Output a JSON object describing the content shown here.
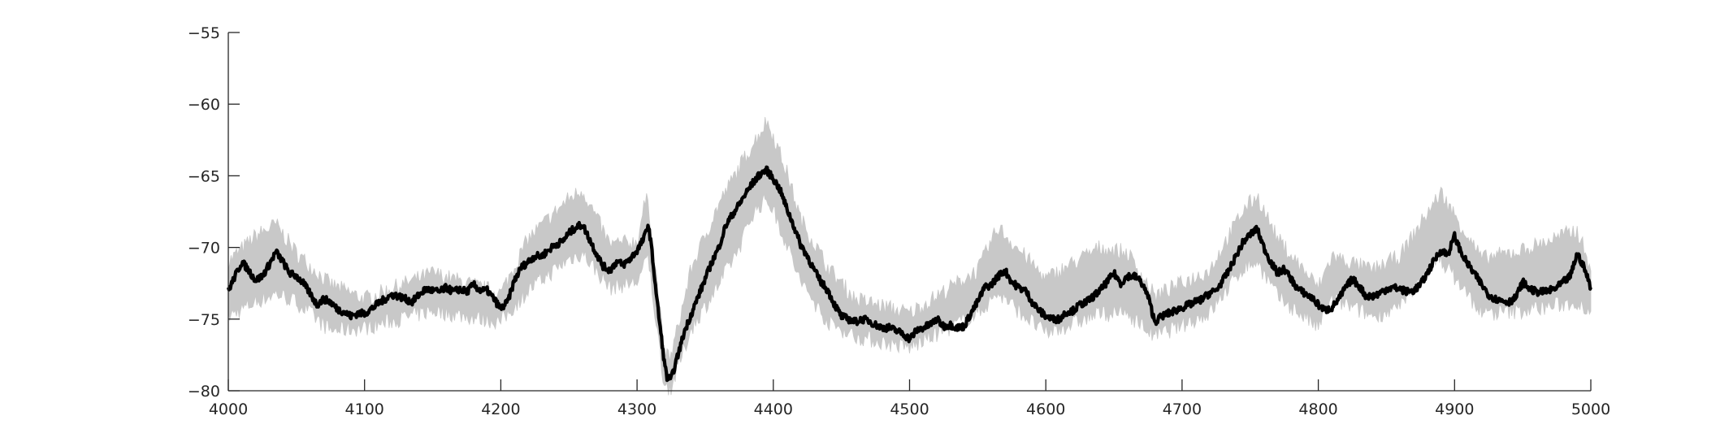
{
  "chart_data": {
    "type": "line",
    "title": "",
    "xlabel": "",
    "ylabel": "",
    "xlim": [
      4000,
      5000
    ],
    "ylim": [
      -80,
      -55
    ],
    "x_ticks": [
      4000,
      4100,
      4200,
      4300,
      4400,
      4500,
      4600,
      4700,
      4800,
      4900,
      5000
    ],
    "y_ticks": [
      -55,
      -60,
      -65,
      -70,
      -75,
      -80
    ],
    "grid": false,
    "legend": "none",
    "series": [
      {
        "role": "mean",
        "color": "#000000",
        "x": [
          4000,
          4005,
          4010,
          4015,
          4020,
          4025,
          4030,
          4035,
          4040,
          4045,
          4050,
          4055,
          4060,
          4065,
          4070,
          4075,
          4080,
          4085,
          4090,
          4095,
          4100,
          4105,
          4110,
          4115,
          4120,
          4125,
          4130,
          4135,
          4140,
          4145,
          4150,
          4155,
          4160,
          4165,
          4170,
          4175,
          4180,
          4185,
          4190,
          4195,
          4200,
          4205,
          4210,
          4215,
          4220,
          4225,
          4230,
          4235,
          4240,
          4245,
          4250,
          4255,
          4260,
          4265,
          4270,
          4275,
          4280,
          4285,
          4290,
          4295,
          4300,
          4305,
          4308,
          4310,
          4315,
          4320,
          4322,
          4325,
          4330,
          4335,
          4340,
          4345,
          4350,
          4355,
          4360,
          4365,
          4370,
          4375,
          4380,
          4385,
          4390,
          4395,
          4400,
          4405,
          4410,
          4415,
          4420,
          4425,
          4430,
          4435,
          4440,
          4445,
          4450,
          4455,
          4460,
          4465,
          4470,
          4475,
          4480,
          4485,
          4490,
          4495,
          4500,
          4505,
          4510,
          4515,
          4520,
          4525,
          4530,
          4535,
          4540,
          4545,
          4550,
          4555,
          4560,
          4565,
          4570,
          4575,
          4580,
          4585,
          4590,
          4595,
          4600,
          4605,
          4610,
          4615,
          4620,
          4625,
          4630,
          4635,
          4640,
          4645,
          4650,
          4655,
          4660,
          4665,
          4670,
          4675,
          4680,
          4685,
          4690,
          4695,
          4700,
          4705,
          4710,
          4715,
          4720,
          4725,
          4730,
          4735,
          4740,
          4745,
          4750,
          4755,
          4760,
          4765,
          4770,
          4775,
          4780,
          4785,
          4790,
          4795,
          4800,
          4805,
          4810,
          4815,
          4820,
          4825,
          4830,
          4835,
          4840,
          4845,
          4850,
          4855,
          4860,
          4865,
          4870,
          4875,
          4880,
          4885,
          4890,
          4895,
          4900,
          4905,
          4910,
          4915,
          4920,
          4925,
          4930,
          4935,
          4940,
          4945,
          4950,
          4955,
          4960,
          4965,
          4970,
          4975,
          4980,
          4985,
          4990,
          4995,
          5000
        ],
        "y": [
          -73.0,
          -72.0,
          -71.0,
          -71.6,
          -72.3,
          -72.0,
          -71.2,
          -70.3,
          -71.0,
          -71.8,
          -72.0,
          -72.5,
          -73.2,
          -74.0,
          -73.6,
          -73.8,
          -74.3,
          -74.5,
          -74.8,
          -74.6,
          -74.6,
          -74.3,
          -73.9,
          -73.6,
          -73.3,
          -73.4,
          -73.6,
          -73.8,
          -73.3,
          -72.9,
          -73.0,
          -73.1,
          -72.8,
          -73.1,
          -72.9,
          -73.1,
          -72.6,
          -73.0,
          -73.0,
          -73.6,
          -74.3,
          -73.8,
          -72.3,
          -71.4,
          -71.0,
          -70.6,
          -70.6,
          -70.2,
          -69.8,
          -69.6,
          -69.0,
          -68.6,
          -68.4,
          -69.4,
          -70.4,
          -71.3,
          -71.6,
          -71.0,
          -71.2,
          -70.8,
          -70.2,
          -69.4,
          -68.4,
          -69.5,
          -74.0,
          -78.0,
          -79.1,
          -79.2,
          -77.5,
          -75.8,
          -74.6,
          -73.4,
          -72.2,
          -71.0,
          -70.0,
          -68.5,
          -67.7,
          -67.0,
          -66.2,
          -65.5,
          -64.9,
          -64.6,
          -65.2,
          -66.0,
          -67.3,
          -68.5,
          -69.8,
          -70.6,
          -71.6,
          -72.4,
          -73.0,
          -74.0,
          -74.8,
          -75.0,
          -75.2,
          -75.0,
          -75.1,
          -75.4,
          -75.6,
          -75.6,
          -75.8,
          -76.0,
          -76.4,
          -75.8,
          -75.6,
          -75.4,
          -75.0,
          -75.5,
          -75.4,
          -75.6,
          -75.5,
          -74.6,
          -73.8,
          -72.8,
          -72.6,
          -72.0,
          -71.6,
          -72.4,
          -72.8,
          -73.0,
          -73.8,
          -74.4,
          -74.8,
          -75.0,
          -75.0,
          -74.5,
          -74.4,
          -74.0,
          -73.8,
          -73.4,
          -73.0,
          -72.4,
          -71.8,
          -72.5,
          -72.0,
          -72.0,
          -72.4,
          -73.4,
          -75.2,
          -74.8,
          -74.6,
          -74.4,
          -74.2,
          -74.0,
          -73.8,
          -73.6,
          -73.2,
          -73.0,
          -72.3,
          -71.5,
          -70.5,
          -69.6,
          -69.1,
          -68.7,
          -70.0,
          -71.0,
          -71.8,
          -71.5,
          -72.2,
          -72.9,
          -73.2,
          -73.5,
          -74.0,
          -74.4,
          -74.2,
          -73.6,
          -72.8,
          -72.2,
          -72.7,
          -73.4,
          -73.4,
          -73.2,
          -72.9,
          -72.8,
          -72.9,
          -73.1,
          -73.0,
          -72.6,
          -71.8,
          -70.9,
          -70.2,
          -70.5,
          -69.2,
          -70.4,
          -71.2,
          -71.9,
          -72.6,
          -73.3,
          -73.6,
          -73.7,
          -73.8,
          -73.5,
          -72.4,
          -72.9,
          -73.1,
          -73.1,
          -73.0,
          -72.8,
          -72.4,
          -72.0,
          -70.4,
          -71.4,
          -72.8
        ]
      }
    ],
    "band": {
      "color": "#c8c8c8",
      "description": "trial spread",
      "x": [
        4000,
        4020,
        4035,
        4050,
        4075,
        4100,
        4150,
        4200,
        4220,
        4250,
        4260,
        4280,
        4300,
        4305,
        4308,
        4315,
        4320,
        4325,
        4340,
        4360,
        4375,
        4385,
        4395,
        4400,
        4410,
        4420,
        4440,
        4460,
        4500,
        4550,
        4565,
        4600,
        4640,
        4660,
        4680,
        4720,
        4745,
        4755,
        4770,
        4800,
        4810,
        4840,
        4860,
        4880,
        4890,
        4920,
        4950,
        4990,
        5000
      ],
      "upper": [
        -71.0,
        -69.2,
        -68.4,
        -70.4,
        -72.6,
        -73.6,
        -71.8,
        -73.2,
        -69.4,
        -66.6,
        -66.0,
        -69.8,
        -69.6,
        -67.2,
        -66.6,
        -72.8,
        -77.4,
        -77.6,
        -71.4,
        -67.0,
        -64.4,
        -62.8,
        -61.2,
        -62.2,
        -64.8,
        -68.0,
        -71.4,
        -73.6,
        -74.6,
        -71.6,
        -68.6,
        -72.2,
        -70.0,
        -70.4,
        -73.4,
        -71.6,
        -67.4,
        -66.4,
        -69.4,
        -72.8,
        -70.6,
        -71.6,
        -70.6,
        -67.6,
        -66.2,
        -70.8,
        -70.2,
        -68.8,
        -71.4
      ],
      "lower": [
        -74.8,
        -73.8,
        -73.2,
        -73.8,
        -75.8,
        -75.6,
        -74.4,
        -75.2,
        -73.0,
        -70.8,
        -70.4,
        -72.8,
        -72.4,
        -71.4,
        -70.6,
        -76.0,
        -79.6,
        -79.8,
        -75.6,
        -72.6,
        -70.0,
        -67.6,
        -66.6,
        -67.4,
        -69.8,
        -72.4,
        -75.2,
        -76.2,
        -77.0,
        -74.6,
        -73.2,
        -76.0,
        -74.6,
        -74.6,
        -76.2,
        -74.6,
        -71.4,
        -71.0,
        -73.4,
        -75.6,
        -73.6,
        -74.8,
        -74.2,
        -71.6,
        -70.8,
        -74.6,
        -74.4,
        -73.8,
        -74.4
      ]
    }
  }
}
